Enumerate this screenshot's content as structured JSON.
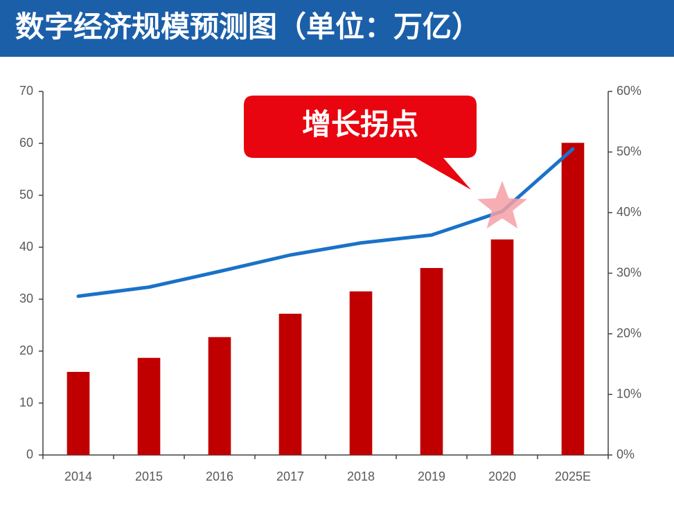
{
  "chart_data": {
    "type": "bar-line",
    "title": "数字经济规模预测图（单位：万亿）",
    "annotation": "增长拐点",
    "categories": [
      "2014",
      "2015",
      "2016",
      "2017",
      "2018",
      "2019",
      "2020",
      "2025E"
    ],
    "series": [
      {
        "type": "bar",
        "color": "#c00000",
        "values": [
          16.0,
          18.7,
          22.7,
          27.2,
          31.5,
          36.0,
          41.5,
          60.1
        ]
      },
      {
        "type": "line",
        "axis": "y2",
        "color": "#1a72c8",
        "values": [
          26.2,
          27.7,
          30.3,
          33.0,
          35.0,
          36.3,
          40.2,
          50.5
        ]
      }
    ],
    "ylim": [
      0,
      70
    ],
    "yticks": [
      0,
      10,
      20,
      30,
      40,
      50,
      60,
      70
    ],
    "y2lim": [
      0,
      60
    ],
    "y2ticks": [
      {
        "value": 0,
        "label": "0%"
      },
      {
        "value": 10,
        "label": "10%"
      },
      {
        "value": 20,
        "label": "20%"
      },
      {
        "value": 30,
        "label": "30%"
      },
      {
        "value": 40,
        "label": "40%"
      },
      {
        "value": 50,
        "label": "50%"
      },
      {
        "value": 60,
        "label": "60%"
      }
    ]
  }
}
